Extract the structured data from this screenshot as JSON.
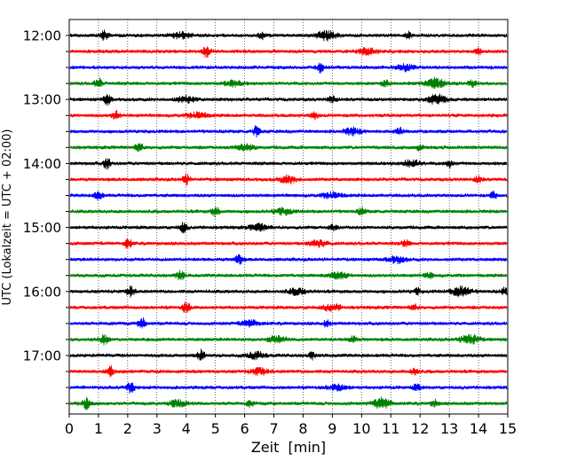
{
  "chart_data": {
    "type": "line",
    "title": "",
    "xlabel": "Zeit  [min]",
    "ylabel": "UTC (Lokalzeit = UTC + 02:00)",
    "xlim": [
      0,
      15
    ],
    "x_ticks": [
      "0",
      "1",
      "2",
      "3",
      "4",
      "5",
      "6",
      "7",
      "8",
      "9",
      "10",
      "11",
      "12",
      "13",
      "14",
      "15"
    ],
    "grid": "vertical dotted at each minute",
    "trace_interval_minutes": 15,
    "first_trace": "12:00",
    "trace_count": 24,
    "hour_labels": [
      "12:00",
      "13:00",
      "14:00",
      "15:00",
      "16:00",
      "17:00"
    ],
    "trace_colors": [
      "#000000",
      "#ff0000",
      "#0000ff",
      "#008000"
    ],
    "series": [
      {
        "time": "12:00",
        "events": [
          1.2,
          3.8,
          6.6,
          8.8,
          11.6
        ]
      },
      {
        "time": "12:15",
        "events": [
          4.7,
          10.2,
          14.0
        ]
      },
      {
        "time": "12:30",
        "events": [
          8.6,
          11.5
        ]
      },
      {
        "time": "12:45",
        "events": [
          1.0,
          5.6,
          10.8,
          12.5,
          13.8
        ]
      },
      {
        "time": "13:00",
        "events": [
          1.3,
          4.0,
          9.0,
          12.6
        ]
      },
      {
        "time": "13:15",
        "events": [
          1.6,
          4.4,
          8.4
        ]
      },
      {
        "time": "13:30",
        "events": [
          6.4,
          9.7,
          11.3
        ]
      },
      {
        "time": "13:45",
        "events": [
          2.4,
          6.0,
          12.0
        ]
      },
      {
        "time": "14:00",
        "events": [
          1.3,
          11.7,
          13.0
        ]
      },
      {
        "time": "14:15",
        "events": [
          4.0,
          7.5,
          14.0
        ]
      },
      {
        "time": "14:30",
        "events": [
          1.0,
          9.0,
          14.5
        ]
      },
      {
        "time": "14:45",
        "events": [
          5.0,
          7.3,
          10.0
        ]
      },
      {
        "time": "15:00",
        "events": [
          3.9,
          6.5,
          9.0
        ]
      },
      {
        "time": "15:15",
        "events": [
          2.0,
          8.5,
          11.5
        ]
      },
      {
        "time": "15:30",
        "events": [
          5.8,
          11.2
        ]
      },
      {
        "time": "15:45",
        "events": [
          3.8,
          9.2,
          12.3
        ]
      },
      {
        "time": "16:00",
        "events": [
          2.1,
          7.8,
          11.9,
          13.4,
          14.9
        ]
      },
      {
        "time": "16:15",
        "events": [
          4.0,
          9.0,
          11.8
        ]
      },
      {
        "time": "16:30",
        "events": [
          2.5,
          6.2,
          8.8
        ]
      },
      {
        "time": "16:45",
        "events": [
          1.2,
          7.1,
          9.7,
          13.7
        ]
      },
      {
        "time": "17:00",
        "events": [
          4.5,
          6.4,
          8.3
        ]
      },
      {
        "time": "17:15",
        "events": [
          1.4,
          6.5,
          11.8
        ]
      },
      {
        "time": "17:30",
        "events": [
          2.1,
          9.2,
          11.9
        ]
      },
      {
        "time": "17:45",
        "events": [
          0.6,
          3.7,
          6.2,
          10.7,
          12.5
        ]
      }
    ]
  }
}
